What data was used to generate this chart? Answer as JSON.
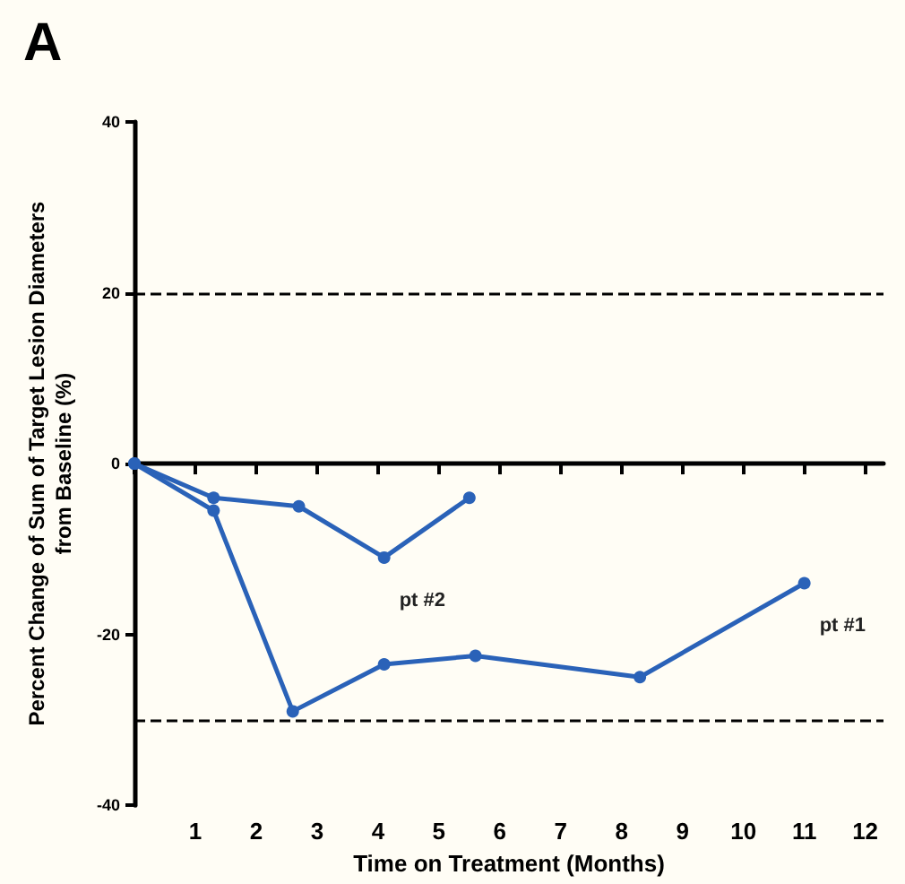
{
  "chart_data": {
    "type": "line",
    "title": "A",
    "xlabel": "Time on Treatment (Months)",
    "ylabel": "Percent Change of Sum of Target Lesion Diameters\nfrom Baseline (%)",
    "series": [
      {
        "name": "pt #2",
        "color": "#2a62b8",
        "x": [
          0,
          1.3,
          2.7,
          4.1,
          5.5
        ],
        "values": [
          0,
          -4,
          -5,
          -11,
          -4
        ]
      },
      {
        "name": "pt #1",
        "color": "#2a62b8",
        "x": [
          0,
          1.3,
          2.6,
          4.1,
          5.6,
          8.3,
          11
        ],
        "values": [
          0,
          -5.5,
          -29,
          -23.5,
          -22.5,
          -25,
          -14
        ]
      }
    ],
    "xlim": [
      0,
      12.3
    ],
    "xticks": [
      {
        "value": 0,
        "label": null
      },
      1,
      2,
      3,
      4,
      5,
      6,
      7,
      8,
      9,
      10,
      11,
      12
    ],
    "ylim": [
      -40,
      40
    ],
    "yticks": [
      -40,
      -20,
      0,
      20,
      40
    ],
    "ref_lines": [
      {
        "axis": "y",
        "value": 20,
        "line_style": "dashed",
        "color": "#000000"
      },
      {
        "axis": "y",
        "value": -30,
        "line_style": "dashed",
        "color": "#000000"
      }
    ],
    "marker": "circle",
    "line_style": "solid",
    "grid": false,
    "legend": false
  }
}
